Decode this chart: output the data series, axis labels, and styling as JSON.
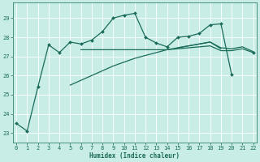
{
  "xlabel": "Humidex (Indice chaleur)",
  "x": [
    0,
    1,
    2,
    3,
    4,
    5,
    6,
    7,
    8,
    9,
    10,
    11,
    12,
    13,
    14,
    15,
    16,
    17,
    18,
    19,
    20,
    21,
    22
  ],
  "line_jagged": [
    23.5,
    23.1,
    25.4,
    27.6,
    27.2,
    27.75,
    27.65,
    27.85,
    28.3,
    29.0,
    29.15,
    29.25,
    28.0,
    27.7,
    27.5,
    28.0,
    28.05,
    28.2,
    28.65,
    28.7,
    26.05,
    null,
    27.2
  ],
  "line_flat": [
    null,
    null,
    null,
    null,
    null,
    null,
    27.35,
    27.35,
    27.35,
    27.35,
    27.35,
    27.35,
    27.35,
    27.35,
    27.35,
    27.4,
    27.45,
    27.5,
    27.55,
    27.3,
    27.3,
    27.4,
    27.2
  ],
  "line_rising1": [
    null,
    null,
    null,
    null,
    null,
    25.5,
    25.75,
    26.0,
    26.25,
    26.5,
    26.7,
    26.9,
    27.05,
    27.2,
    27.35,
    27.45,
    27.55,
    27.65,
    27.75,
    27.4,
    null,
    null,
    null
  ],
  "line_rising2": [
    null,
    null,
    null,
    null,
    null,
    null,
    null,
    null,
    null,
    null,
    null,
    null,
    null,
    null,
    null,
    27.45,
    27.55,
    27.65,
    27.75,
    27.45,
    27.4,
    27.5,
    27.25
  ],
  "color": "#1a6b5a",
  "bg_color": "#c8ede6",
  "grid_color": "#ffffff",
  "ylim": [
    22.5,
    29.8
  ],
  "yticks": [
    23,
    24,
    25,
    26,
    27,
    28,
    29
  ],
  "xlim": [
    -0.3,
    22.3
  ],
  "xticks": [
    0,
    1,
    2,
    3,
    4,
    5,
    6,
    7,
    8,
    9,
    10,
    11,
    12,
    13,
    14,
    15,
    16,
    17,
    18,
    19,
    20,
    21,
    22
  ]
}
